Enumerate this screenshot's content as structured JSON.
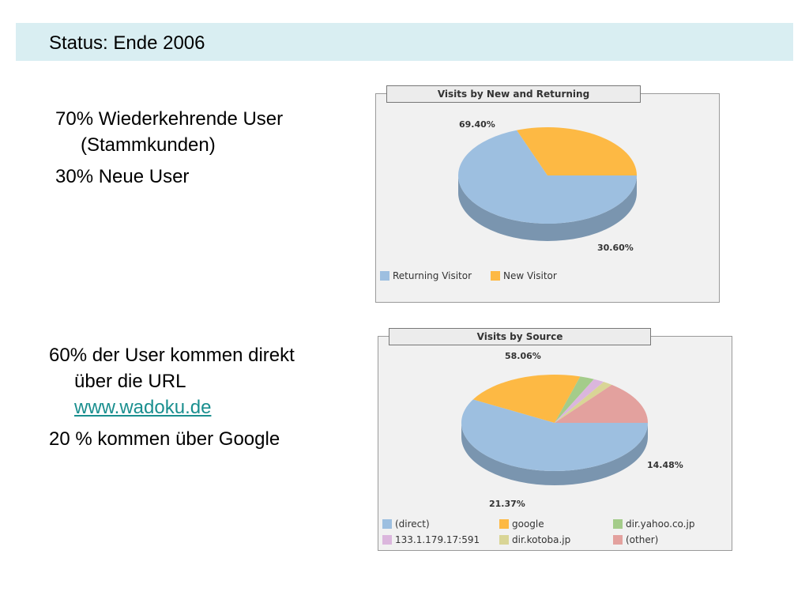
{
  "slide": {
    "title": "Status: Ende 2006",
    "block1": {
      "line1": "70% Wiederkehrende User",
      "line1_cont": "(Stammkunden)",
      "line2": "30% Neue User"
    },
    "block2": {
      "line1": "60% der User kommen direkt",
      "line1_cont": "über die URL",
      "link": "www.wadoku.de",
      "line2": "20 % kommen über Google"
    }
  },
  "chart_data": [
    {
      "type": "pie",
      "title": "Visits by New and Returning",
      "slices": [
        {
          "label": "Returning Visitor",
          "value": 69.4,
          "value_label": "69.40%",
          "color": "#9dbfe0"
        },
        {
          "label": "New Visitor",
          "value": 30.6,
          "value_label": "30.60%",
          "color": "#fdb944"
        }
      ],
      "legend": "bottom-left"
    },
    {
      "type": "pie",
      "title": "Visits by Source",
      "slices": [
        {
          "label": "(direct)",
          "value": 58.06,
          "value_label": "58.06%",
          "color": "#9dbfe0"
        },
        {
          "label": "google",
          "value": 21.37,
          "value_label": "21.37%",
          "color": "#fdb944"
        },
        {
          "label": "dir.yahoo.co.jp",
          "value": 2.5,
          "value_label": "",
          "color": "#a4cc8a"
        },
        {
          "label": "133.1.179.17:591",
          "value": 1.9,
          "value_label": "",
          "color": "#dbb6dd"
        },
        {
          "label": "dir.kotoba.jp",
          "value": 1.69,
          "value_label": "",
          "color": "#d9d596"
        },
        {
          "label": "(other)",
          "value": 14.48,
          "value_label": "14.48%",
          "color": "#e3a19e"
        }
      ],
      "legend": "bottom-left"
    }
  ]
}
